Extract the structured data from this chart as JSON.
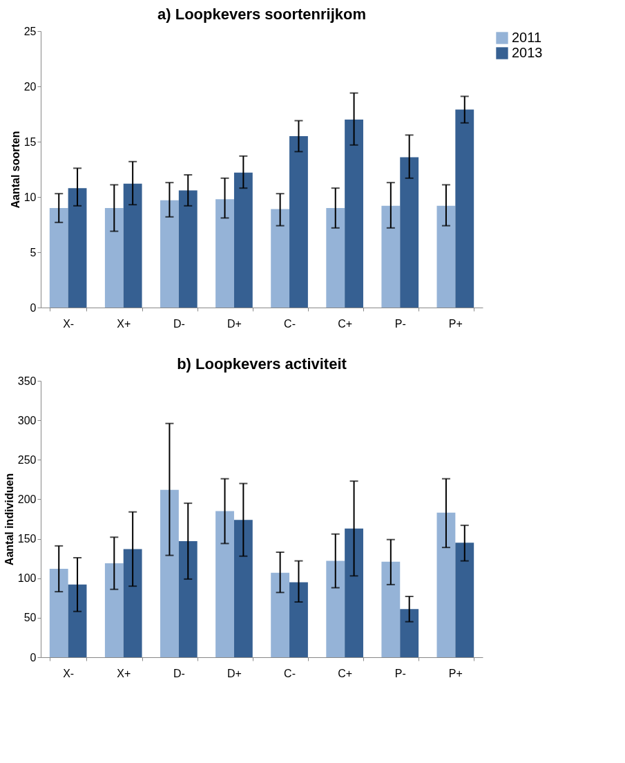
{
  "chart_data": [
    {
      "type": "bar",
      "title": "a) Loopkevers soortenrijkom",
      "ylabel": "Aantal soorten",
      "categories": [
        "X-",
        "X+",
        "D-",
        "D+",
        "C-",
        "C+",
        "P-",
        "P+"
      ],
      "ylim": [
        0,
        25
      ],
      "yticks": [
        0,
        5,
        10,
        15,
        20,
        25
      ],
      "grid": false,
      "legend": "right",
      "series": [
        {
          "name": "2011",
          "color": "#95b3d7",
          "values": [
            9.0,
            9.0,
            9.7,
            9.8,
            8.9,
            9.0,
            9.2,
            9.2
          ],
          "errors": [
            [
              7.7,
              10.3
            ],
            [
              6.9,
              11.1
            ],
            [
              8.2,
              11.3
            ],
            [
              8.1,
              11.7
            ],
            [
              7.4,
              10.3
            ],
            [
              7.2,
              10.8
            ],
            [
              7.2,
              11.3
            ],
            [
              7.4,
              11.1
            ]
          ]
        },
        {
          "name": "2013",
          "color": "#366092",
          "values": [
            10.8,
            11.2,
            10.6,
            12.2,
            15.5,
            17.0,
            13.6,
            17.9
          ],
          "errors": [
            [
              9.2,
              12.6
            ],
            [
              9.3,
              13.2
            ],
            [
              9.2,
              12.0
            ],
            [
              10.8,
              13.7
            ],
            [
              14.1,
              16.9
            ],
            [
              14.7,
              19.4
            ],
            [
              11.7,
              15.6
            ],
            [
              16.7,
              19.1
            ]
          ]
        }
      ]
    },
    {
      "type": "bar",
      "title": "b) Loopkevers activiteit",
      "ylabel": "Aantal individuen",
      "categories": [
        "X-",
        "X+",
        "D-",
        "D+",
        "C-",
        "C+",
        "P-",
        "P+"
      ],
      "ylim": [
        0,
        350
      ],
      "yticks": [
        0,
        50,
        100,
        150,
        200,
        250,
        300,
        350
      ],
      "grid": false,
      "legend": "right",
      "series": [
        {
          "name": "2011",
          "color": "#95b3d7",
          "values": [
            112,
            119,
            212,
            185,
            107,
            122,
            121,
            183
          ],
          "errors": [
            [
              83,
              141
            ],
            [
              86,
              152
            ],
            [
              129,
              296
            ],
            [
              144,
              226
            ],
            [
              82,
              133
            ],
            [
              88,
              156
            ],
            [
              92,
              149
            ],
            [
              139,
              226
            ]
          ]
        },
        {
          "name": "2013",
          "color": "#366092",
          "values": [
            92,
            137,
            147,
            174,
            95,
            163,
            61,
            145
          ],
          "errors": [
            [
              58,
              126
            ],
            [
              90,
              184
            ],
            [
              99,
              195
            ],
            [
              128,
              220
            ],
            [
              70,
              122
            ],
            [
              103,
              223
            ],
            [
              45,
              77
            ],
            [
              122,
              167
            ]
          ]
        }
      ]
    }
  ]
}
